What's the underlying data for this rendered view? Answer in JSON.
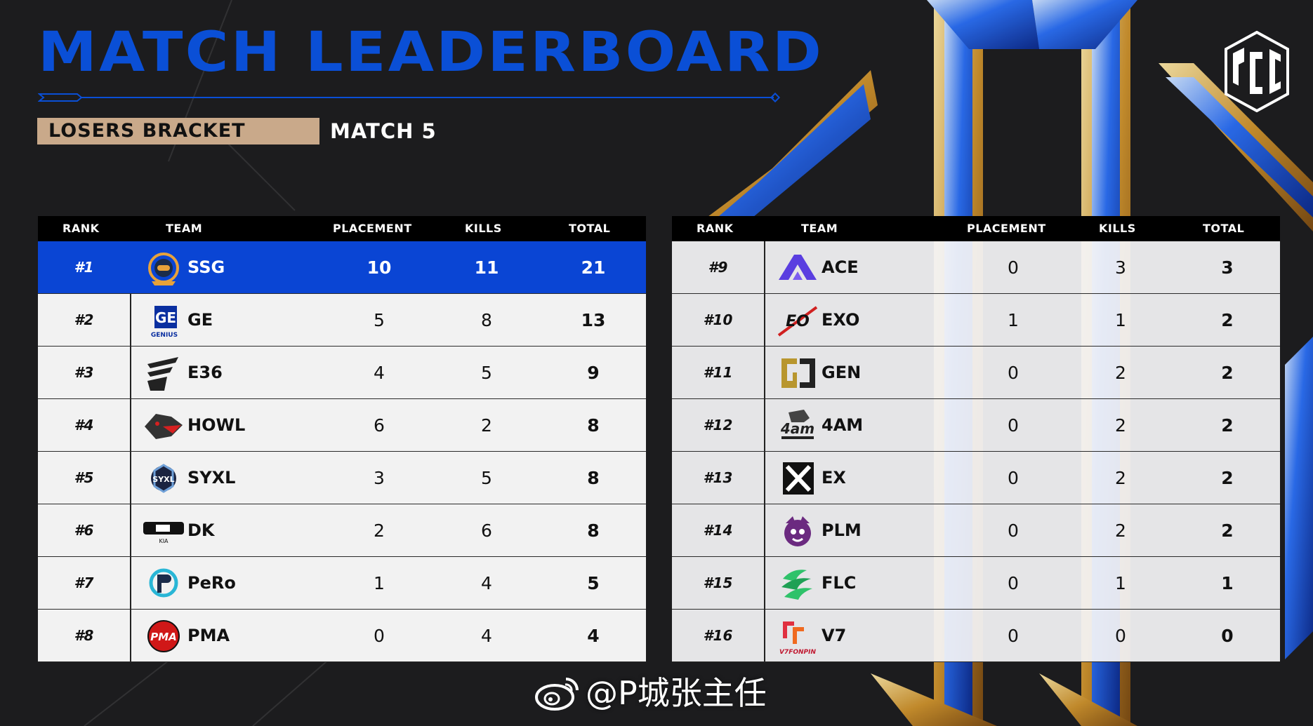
{
  "header": {
    "title": "MATCH LEADERBOARD",
    "bracket": "LOSERS BRACKET",
    "match": "MATCH 5",
    "logo_text": "PGC"
  },
  "columns": {
    "rank": "RANK",
    "team": "TEAM",
    "placement": "PLACEMENT",
    "kills": "KILLS",
    "total": "TOTAL"
  },
  "colors": {
    "accent_blue": "#0a45d4",
    "tag_tan": "#c9a98a",
    "background": "#1c1c1e"
  },
  "left_table": [
    {
      "rank": "#1",
      "team": "SSG",
      "placement": "10",
      "kills": "11",
      "total": "21",
      "logo": "ssg-logo"
    },
    {
      "rank": "#2",
      "team": "GE",
      "placement": "5",
      "kills": "8",
      "total": "13",
      "logo": "ge-logo"
    },
    {
      "rank": "#3",
      "team": "E36",
      "placement": "4",
      "kills": "5",
      "total": "9",
      "logo": "e36-logo"
    },
    {
      "rank": "#4",
      "team": "HOWL",
      "placement": "6",
      "kills": "2",
      "total": "8",
      "logo": "howl-logo"
    },
    {
      "rank": "#5",
      "team": "SYXL",
      "placement": "3",
      "kills": "5",
      "total": "8",
      "logo": "syxl-logo"
    },
    {
      "rank": "#6",
      "team": "DK",
      "placement": "2",
      "kills": "6",
      "total": "8",
      "logo": "dk-logo"
    },
    {
      "rank": "#7",
      "team": "PeRo",
      "placement": "1",
      "kills": "4",
      "total": "5",
      "logo": "pero-logo"
    },
    {
      "rank": "#8",
      "team": "PMA",
      "placement": "0",
      "kills": "4",
      "total": "4",
      "logo": "pma-logo"
    }
  ],
  "right_table": [
    {
      "rank": "#9",
      "team": "ACE",
      "placement": "0",
      "kills": "3",
      "total": "3",
      "logo": "ace-logo"
    },
    {
      "rank": "#10",
      "team": "EXO",
      "placement": "1",
      "kills": "1",
      "total": "2",
      "logo": "exo-logo"
    },
    {
      "rank": "#11",
      "team": "GEN",
      "placement": "0",
      "kills": "2",
      "total": "2",
      "logo": "gen-logo"
    },
    {
      "rank": "#12",
      "team": "4AM",
      "placement": "0",
      "kills": "2",
      "total": "2",
      "logo": "4am-logo"
    },
    {
      "rank": "#13",
      "team": "EX",
      "placement": "0",
      "kills": "2",
      "total": "2",
      "logo": "ex-logo"
    },
    {
      "rank": "#14",
      "team": "PLM",
      "placement": "0",
      "kills": "2",
      "total": "2",
      "logo": "plm-logo"
    },
    {
      "rank": "#15",
      "team": "FLC",
      "placement": "0",
      "kills": "1",
      "total": "1",
      "logo": "flc-logo"
    },
    {
      "rank": "#16",
      "team": "V7",
      "placement": "0",
      "kills": "0",
      "total": "0",
      "logo": "v7-logo"
    }
  ],
  "watermark": {
    "text": "@P城张主任",
    "icon": "weibo-icon"
  }
}
